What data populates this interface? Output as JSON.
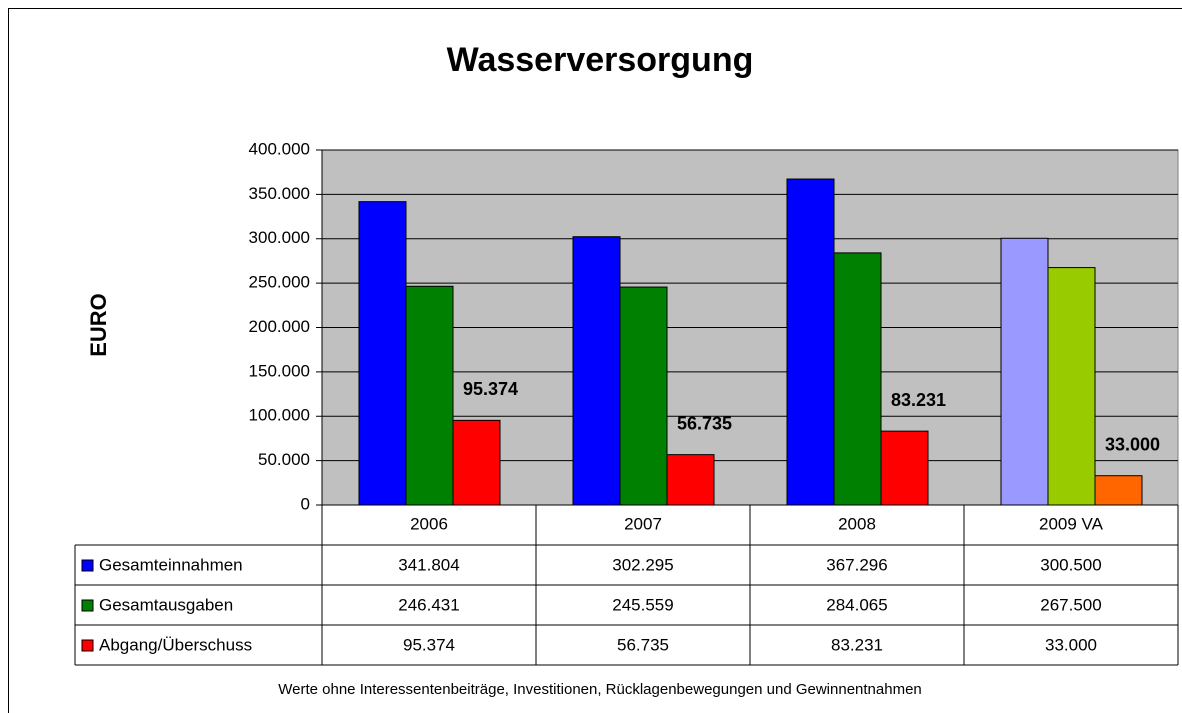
{
  "chart_data": {
    "type": "bar",
    "title": "Wasserversorgung",
    "y_label": "EURO",
    "footnote": "Werte ohne Interessentenbeiträge, Investitionen, Rücklagenbewegungen und Gewinnentnahmen",
    "categories": [
      "2006",
      "2007",
      "2008",
      "2009 VA"
    ],
    "series": [
      {
        "name": "Gesamteinnahmen",
        "color": "#0000ff",
        "colors": [
          "#0000ff",
          "#0000ff",
          "#0000ff",
          "#9999ff"
        ],
        "values": [
          341804,
          302295,
          367296,
          300500
        ],
        "value_labels": [
          "341.804",
          "302.295",
          "367.296",
          "300.500"
        ]
      },
      {
        "name": "Gesamtausgaben",
        "color": "#008000",
        "colors": [
          "#008000",
          "#008000",
          "#008000",
          "#99cc00"
        ],
        "values": [
          246431,
          245559,
          284065,
          267500
        ],
        "value_labels": [
          "246.431",
          "245.559",
          "284.065",
          "267.500"
        ]
      },
      {
        "name": "Abgang/Überschuss",
        "color": "#ff0000",
        "colors": [
          "#ff0000",
          "#ff0000",
          "#ff0000",
          "#ff6600"
        ],
        "values": [
          95374,
          56735,
          83231,
          33000
        ],
        "value_labels": [
          "95.374",
          "56.735",
          "83.231",
          "33.000"
        ]
      }
    ],
    "ylim": [
      0,
      400000
    ],
    "yticks": [
      0,
      {
        "value": 50000,
        "label": "50.000"
      },
      {
        "value": 100000,
        "label": "100.000"
      },
      {
        "value": 150000,
        "label": "150.000"
      },
      {
        "value": 200000,
        "label": "200.000"
      },
      {
        "value": 250000,
        "label": "250.000"
      },
      {
        "value": 300000,
        "label": "300.000"
      },
      {
        "value": 350000,
        "label": "350.000"
      },
      {
        "value": 400000,
        "label": "400.000"
      }
    ],
    "grid": true,
    "data_labels_series": 2,
    "plot_background": "#c0c0c0"
  }
}
